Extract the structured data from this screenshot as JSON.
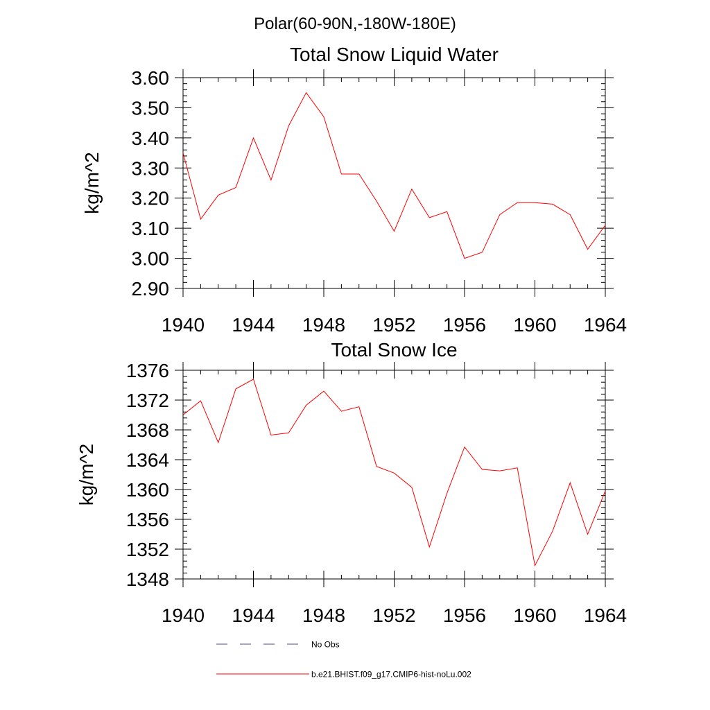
{
  "figure": {
    "suptitle": "Polar(60-90N,-180W-180E)",
    "legend": {
      "placement": "bottom",
      "entries": [
        {
          "label": "No Obs",
          "style": "dashed",
          "color": "#4a4a7a"
        },
        {
          "label": "b.e21.BHIST.f09_g17.CMIP6-hist-noLu.002",
          "style": "solid",
          "color": "#ff0000"
        }
      ]
    }
  },
  "chart_data": [
    {
      "type": "line",
      "title": "Total Snow Liquid Water",
      "xlabel": "",
      "ylabel": "kg/m^2",
      "xlim": [
        1940,
        1964
      ],
      "ylim": [
        2.9,
        3.6
      ],
      "xticks": [
        "1940",
        "1944",
        "1948",
        "1952",
        "1956",
        "1960",
        "1964"
      ],
      "yticks": [
        "2.90",
        "3.00",
        "3.10",
        "3.20",
        "3.30",
        "3.40",
        "3.50",
        "3.60"
      ],
      "grid": false,
      "x": [
        1940,
        1941,
        1942,
        1943,
        1944,
        1945,
        1946,
        1947,
        1948,
        1949,
        1950,
        1951,
        1952,
        1953,
        1954,
        1955,
        1956,
        1957,
        1958,
        1959,
        1960,
        1961,
        1962,
        1963,
        1964
      ],
      "series": [
        {
          "name": "b.e21.BHIST.f09_g17.CMIP6-hist-noLu.002",
          "color": "#ff0000",
          "values": [
            3.35,
            3.13,
            3.21,
            3.235,
            3.4,
            3.26,
            3.44,
            3.55,
            3.47,
            3.28,
            3.28,
            3.19,
            3.09,
            3.23,
            3.135,
            3.155,
            3.0,
            3.02,
            3.145,
            3.185,
            3.185,
            3.18,
            3.145,
            3.03,
            3.11
          ]
        }
      ]
    },
    {
      "type": "line",
      "title": "Total Snow Ice",
      "xlabel": "",
      "ylabel": "kg/m^2",
      "xlim": [
        1940,
        1964
      ],
      "ylim": [
        1348,
        1376
      ],
      "xticks": [
        "1940",
        "1944",
        "1948",
        "1952",
        "1956",
        "1960",
        "1964"
      ],
      "yticks": [
        "1348",
        "1352",
        "1356",
        "1360",
        "1364",
        "1368",
        "1372",
        "1376"
      ],
      "grid": false,
      "x": [
        1940,
        1941,
        1942,
        1943,
        1944,
        1945,
        1946,
        1947,
        1948,
        1949,
        1950,
        1951,
        1952,
        1953,
        1954,
        1955,
        1956,
        1957,
        1958,
        1959,
        1960,
        1961,
        1962,
        1963,
        1964
      ],
      "series": [
        {
          "name": "b.e21.BHIST.f09_g17.CMIP6-hist-noLu.002",
          "color": "#ff0000",
          "values": [
            1370.0,
            1371.9,
            1366.3,
            1373.5,
            1374.8,
            1367.3,
            1367.6,
            1371.3,
            1373.2,
            1370.5,
            1371.1,
            1363.1,
            1362.2,
            1360.3,
            1352.3,
            1359.5,
            1365.7,
            1362.7,
            1362.5,
            1362.9,
            1349.8,
            1354.4,
            1360.9,
            1354.0,
            1359.8
          ]
        }
      ]
    }
  ]
}
